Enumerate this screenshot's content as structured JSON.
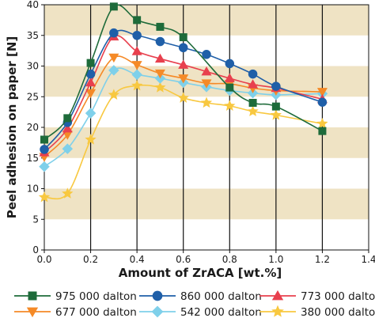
{
  "chart_data": {
    "type": "line",
    "title": "",
    "xlabel": "Amount of ZrACA [wt.%]",
    "ylabel": "Peel adhesion on paper [N]",
    "xlim": [
      0.0,
      1.4
    ],
    "ylim": [
      0,
      40
    ],
    "xticks": [
      0.0,
      0.2,
      0.4,
      0.6,
      0.8,
      1.0,
      1.2,
      1.4
    ],
    "xtick_labels": [
      "0.0",
      "0.2",
      "0.4",
      "0.6",
      "0.8",
      "1.0",
      "1.2",
      "1.4"
    ],
    "yticks": [
      0,
      5,
      10,
      15,
      20,
      25,
      30,
      35,
      40
    ],
    "ytick_labels": [
      "0",
      "5",
      "10",
      "15",
      "20",
      "25",
      "30",
      "35",
      "40"
    ],
    "grid": "vertical lines, horizontal bands",
    "legend_position": "bottom",
    "series": [
      {
        "name": "975 000 dalton",
        "color": "#1e6b3a",
        "marker": "square",
        "x": [
          0.0,
          0.1,
          0.2,
          0.3,
          0.4,
          0.5,
          0.6,
          0.8,
          0.9,
          1.0,
          1.2
        ],
        "y": [
          18.0,
          21.5,
          30.5,
          39.7,
          37.5,
          36.4,
          34.7,
          26.5,
          24.0,
          23.4,
          19.4
        ]
      },
      {
        "name": "860 000 dalton",
        "color": "#1f5fa8",
        "marker": "circle",
        "x": [
          0.0,
          0.1,
          0.2,
          0.3,
          0.4,
          0.5,
          0.6,
          0.7,
          0.8,
          0.9,
          1.0,
          1.2
        ],
        "y": [
          16.4,
          20.8,
          28.7,
          35.4,
          35.0,
          34.0,
          33.0,
          31.9,
          30.4,
          28.7,
          26.7,
          24.1
        ]
      },
      {
        "name": "773 000 dalton",
        "color": "#e8404e",
        "marker": "triangle-up",
        "x": [
          0.0,
          0.1,
          0.2,
          0.3,
          0.4,
          0.5,
          0.6,
          0.7,
          0.8,
          0.9,
          1.0,
          1.2
        ],
        "y": [
          15.9,
          19.8,
          27.3,
          34.8,
          32.4,
          31.2,
          30.2,
          29.1,
          28.0,
          27.0,
          26.4,
          24.6
        ]
      },
      {
        "name": "677 000 dalton",
        "color": "#f58a27",
        "marker": "triangle-down",
        "x": [
          0.0,
          0.1,
          0.2,
          0.3,
          0.4,
          0.5,
          0.6,
          0.7,
          0.8,
          0.9,
          1.0,
          1.2
        ],
        "y": [
          15.2,
          18.8,
          25.6,
          31.4,
          30.2,
          28.8,
          28.0,
          27.2,
          27.1,
          26.4,
          26.0,
          25.8
        ]
      },
      {
        "name": "542 000 dalton",
        "color": "#7fd0ea",
        "marker": "diamond",
        "x": [
          0.0,
          0.1,
          0.2,
          0.3,
          0.4,
          0.5,
          0.6,
          0.7,
          0.8,
          0.9,
          1.0,
          1.2
        ],
        "y": [
          13.6,
          16.5,
          22.3,
          29.3,
          28.6,
          28.0,
          27.3,
          26.6,
          26.0,
          25.6,
          25.3,
          25.5
        ]
      },
      {
        "name": "380 000 dalton",
        "color": "#f8c840",
        "marker": "star",
        "x": [
          0.0,
          0.1,
          0.2,
          0.3,
          0.4,
          0.5,
          0.6,
          0.7,
          0.8,
          0.9,
          1.0,
          1.2
        ],
        "y": [
          8.6,
          9.2,
          18.0,
          25.3,
          26.8,
          26.5,
          24.8,
          24.0,
          23.5,
          22.6,
          22.0,
          20.6
        ]
      }
    ],
    "colors": {
      "band": "#efe3c4",
      "background": "#ffffff",
      "grid": "#111111"
    }
  }
}
